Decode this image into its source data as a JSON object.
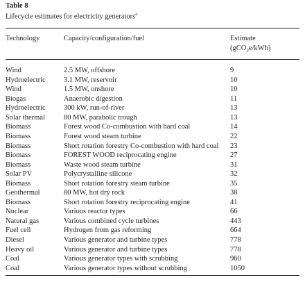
{
  "header": {
    "label": "Table 8",
    "caption": "Lifecycle estimates for electricity generators",
    "caption_note": "a"
  },
  "table": {
    "columns": [
      "Technology",
      "Capacity/configuration/fuel",
      {
        "before": "Estimate (gCO",
        "sub": "2",
        "after": "e/kWh)"
      }
    ],
    "rows": [
      [
        "Wind",
        "2.5 MW, offshore",
        9
      ],
      [
        "Hydroelectric",
        "3.1 MW, reservoir",
        10
      ],
      [
        "Wind",
        "1.5 MW, onshore",
        10
      ],
      [
        "Biogas",
        "Anaerobic digestion",
        11
      ],
      [
        "Hydroelectric",
        "300 kW, run-of-river",
        13
      ],
      [
        "Solar thermal",
        "80 MW, parabolic trough",
        13
      ],
      [
        "Biomass",
        "Forest wood Co-combustion with hard coal",
        14
      ],
      [
        "Biomass",
        "Forest wood steam turbine",
        22
      ],
      [
        "Biomass",
        "Short rotation forestry Co-combustion with hard coal",
        23
      ],
      [
        "Biomass",
        "FOREST WOOD reciprocating engine",
        27
      ],
      [
        "Biomass",
        "Waste wood steam turbine",
        31
      ],
      [
        "Solar PV",
        "Polycrystalline silicone",
        32
      ],
      [
        "Biomass",
        "Short rotation forestry steam turbine",
        35
      ],
      [
        "Geothermal",
        "80 MW, hot dry rock",
        38
      ],
      [
        "Biomass",
        "Short rotation forestry reciprocating engine",
        41
      ],
      [
        "Nuclear",
        "Various reactor types",
        66
      ],
      [
        "Natural gas",
        "Various combined cycle turbines",
        443
      ],
      [
        "Fuel cell",
        "Hydrogen from gas reforming",
        664
      ],
      [
        "Diesel",
        "Various generator and turbine types",
        778
      ],
      [
        "Heavy oil",
        "Various generator and turbine types",
        778
      ],
      [
        "Coal",
        "Various generator types with scrubbing",
        960
      ],
      [
        "Coal",
        "Various generator types without scrubbing",
        1050
      ]
    ]
  }
}
